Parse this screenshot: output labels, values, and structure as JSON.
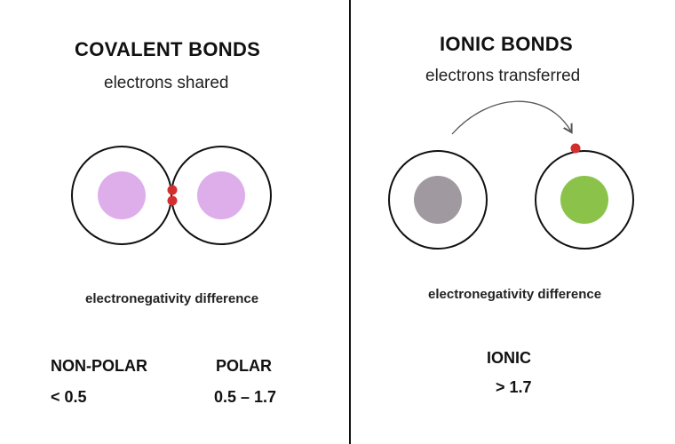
{
  "covalent": {
    "title": "COVALENT BONDS",
    "subtitle": "electrons shared",
    "en_label": "electronegativity difference",
    "categories": [
      {
        "name": "NON-POLAR",
        "value": "< 0.5"
      },
      {
        "name": "POLAR",
        "value": "0.5 – 1.7"
      }
    ]
  },
  "ionic": {
    "title": "IONIC BONDS",
    "subtitle": "electrons transferred",
    "en_label": "electronegativity difference",
    "categories": [
      {
        "name": "IONIC",
        "value": "> 1.7"
      }
    ]
  },
  "colors": {
    "covalent_nucleus": "#deaeeb",
    "ionic_donor_nucleus": "#a09aa0",
    "ionic_acceptor_nucleus": "#8bc34a",
    "electron": "#d32f2f",
    "outline": "#111111",
    "arrow": "#555555"
  }
}
